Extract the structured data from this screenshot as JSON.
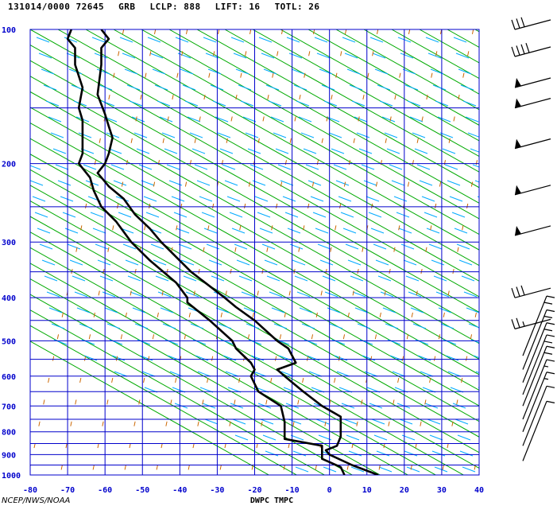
{
  "header": {
    "station_time": "131014/0000 72645",
    "model": "GRB",
    "lclp": "LCLP: 888",
    "lift": "LIFT: 16",
    "totl": "TOTL: 26"
  },
  "credit": "NCEP/NWS/NOAA",
  "colors": {
    "grid": "#0000cc",
    "dry_adiabat": "#00aa00",
    "mixing_ratio": "#00aaff",
    "moist_adiabat": "#cc6600",
    "profile": "#000000",
    "barb": "#000000"
  },
  "chart_data": {
    "type": "line",
    "title": "",
    "xlabel": "DWPC TMPC",
    "ylabel": "",
    "x_ticks": [
      -80,
      -70,
      -60,
      -50,
      -40,
      -30,
      -20,
      -10,
      0,
      10,
      20,
      30,
      40
    ],
    "y_ticks": [
      100,
      200,
      300,
      400,
      500,
      600,
      700,
      800,
      900,
      1000
    ],
    "xlim": [
      -80,
      40
    ],
    "ylim": [
      1000,
      100
    ],
    "y_scale": "log-pressure",
    "series": [
      {
        "name": "TMPC",
        "points": [
          [
            1000,
            13
          ],
          [
            950,
            6
          ],
          [
            900,
            0
          ],
          [
            880,
            -1
          ],
          [
            860,
            2
          ],
          [
            820,
            3
          ],
          [
            790,
            3
          ],
          [
            760,
            3
          ],
          [
            740,
            3
          ],
          [
            700,
            -2
          ],
          [
            650,
            -7
          ],
          [
            600,
            -12
          ],
          [
            580,
            -14
          ],
          [
            560,
            -9
          ],
          [
            520,
            -11
          ],
          [
            500,
            -14
          ],
          [
            450,
            -20
          ],
          [
            420,
            -25
          ],
          [
            400,
            -28
          ],
          [
            350,
            -37
          ],
          [
            300,
            -45
          ],
          [
            280,
            -48
          ],
          [
            260,
            -52
          ],
          [
            240,
            -55
          ],
          [
            225,
            -59
          ],
          [
            210,
            -62
          ],
          [
            200,
            -60
          ],
          [
            190,
            -59
          ],
          [
            175,
            -58
          ],
          [
            165,
            -59
          ],
          [
            155,
            -60
          ],
          [
            140,
            -62
          ],
          [
            120,
            -61
          ],
          [
            110,
            -61
          ],
          [
            105,
            -59
          ],
          [
            100,
            -61
          ]
        ]
      },
      {
        "name": "DWPC",
        "points": [
          [
            1000,
            4
          ],
          [
            960,
            3
          ],
          [
            920,
            -2
          ],
          [
            890,
            -2
          ],
          [
            860,
            -2
          ],
          [
            830,
            -12
          ],
          [
            800,
            -12
          ],
          [
            760,
            -12
          ],
          [
            700,
            -13
          ],
          [
            650,
            -19
          ],
          [
            600,
            -21
          ],
          [
            580,
            -20
          ],
          [
            560,
            -21
          ],
          [
            520,
            -25
          ],
          [
            500,
            -26
          ],
          [
            450,
            -32
          ],
          [
            410,
            -38
          ],
          [
            400,
            -38
          ],
          [
            370,
            -41
          ],
          [
            330,
            -48
          ],
          [
            300,
            -53
          ],
          [
            270,
            -57
          ],
          [
            250,
            -61
          ],
          [
            230,
            -63
          ],
          [
            215,
            -64
          ],
          [
            200,
            -67
          ],
          [
            190,
            -66
          ],
          [
            175,
            -66
          ],
          [
            160,
            -66
          ],
          [
            150,
            -67
          ],
          [
            135,
            -66
          ],
          [
            120,
            -68
          ],
          [
            110,
            -68
          ],
          [
            105,
            -70
          ],
          [
            100,
            -69
          ]
        ]
      }
    ],
    "wind_barbs": [
      {
        "pressure": 100,
        "speed_kt": 30
      },
      {
        "pressure": 115,
        "speed_kt": 40
      },
      {
        "pressure": 135,
        "speed_kt": 50
      },
      {
        "pressure": 150,
        "speed_kt": 50
      },
      {
        "pressure": 185,
        "speed_kt": 50
      },
      {
        "pressure": 235,
        "speed_kt": 50
      },
      {
        "pressure": 290,
        "speed_kt": 50
      },
      {
        "pressure": 400,
        "speed_kt": 30
      },
      {
        "pressure": 470,
        "speed_kt": 25
      },
      {
        "pressure": 540,
        "speed_kt": 20
      },
      {
        "pressure": 580,
        "speed_kt": 20
      },
      {
        "pressure": 620,
        "speed_kt": 20
      },
      {
        "pressure": 660,
        "speed_kt": 20
      },
      {
        "pressure": 700,
        "speed_kt": 20
      },
      {
        "pressure": 750,
        "speed_kt": 15
      },
      {
        "pressure": 800,
        "speed_kt": 15
      },
      {
        "pressure": 860,
        "speed_kt": 10
      },
      {
        "pressure": 930,
        "speed_kt": 10
      }
    ]
  }
}
